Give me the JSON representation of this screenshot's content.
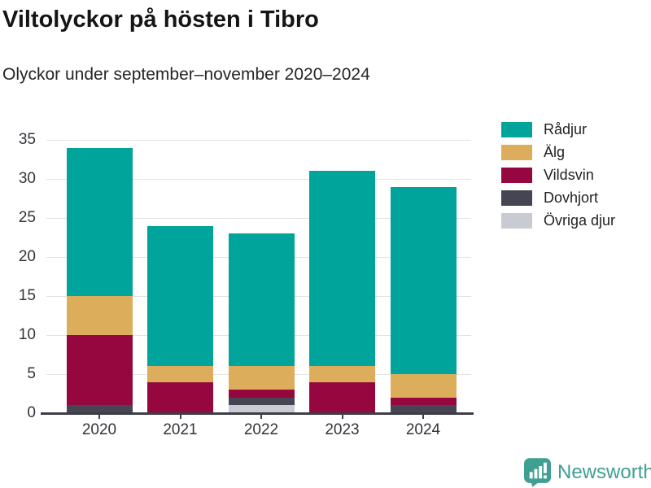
{
  "header": {
    "title": "Viltolyckor på hösten i Tibro",
    "subtitle": "Olyckor under september–november 2020–2024"
  },
  "chart_data": {
    "type": "bar",
    "stacked": true,
    "title": "Viltolyckor på hösten i Tibro",
    "subtitle": "Olyckor under september–november 2020–2024",
    "categories": [
      "2020",
      "2021",
      "2022",
      "2023",
      "2024"
    ],
    "series": [
      {
        "name": "Rådjur",
        "color": "#00a49b",
        "values": [
          19,
          18,
          17,
          25,
          24
        ]
      },
      {
        "name": "Älg",
        "color": "#dcae5b",
        "values": [
          5,
          2,
          3,
          2,
          3
        ]
      },
      {
        "name": "Vildsvin",
        "color": "#97073f",
        "values": [
          9,
          4,
          1,
          4,
          1
        ]
      },
      {
        "name": "Dovhjort",
        "color": "#454553",
        "values": [
          1,
          0,
          1,
          0,
          1
        ]
      },
      {
        "name": "Övriga djur",
        "color": "#c9cbd3",
        "values": [
          0,
          0,
          1,
          0,
          0
        ]
      }
    ],
    "totals": [
      34,
      24,
      23,
      31,
      29
    ],
    "xlabel": "",
    "ylabel": "",
    "ylim": [
      0,
      35
    ],
    "ytick_step": 5,
    "yticks": [
      0,
      5,
      10,
      15,
      20,
      25,
      30,
      35
    ],
    "grid": true,
    "legend_position": "right",
    "stack_order_bottom_to_top": [
      "Övriga djur",
      "Dovhjort",
      "Vildsvin",
      "Älg",
      "Rådjur"
    ]
  },
  "footer": {
    "brand": "Newsworthy",
    "brand_color": "#3f9f92"
  }
}
